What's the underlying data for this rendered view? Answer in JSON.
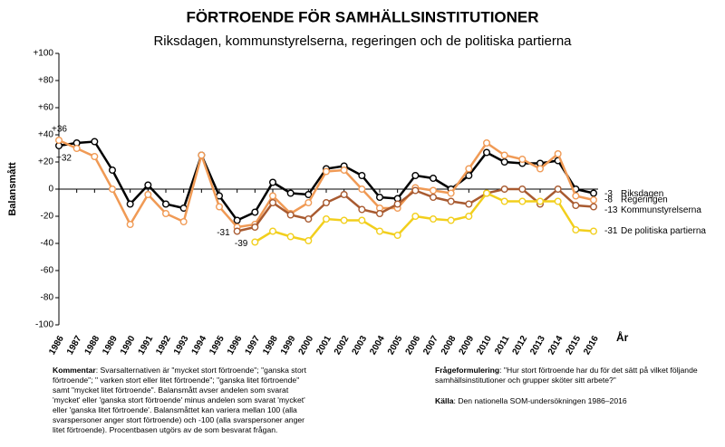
{
  "chart_data": {
    "type": "line",
    "title": "FÖRTROENDE FÖR SAMHÄLLSINSTITUTIONER",
    "subtitle": "Riksdagen, kommunstyrelserna, regeringen och de politiska partierna",
    "ylabel": "Balansmått",
    "xlabel": "År",
    "categories": [
      "1986",
      "1987",
      "1988",
      "1989",
      "1990",
      "1991",
      "1992",
      "1993",
      "1994",
      "1995",
      "1996",
      "1997",
      "1998",
      "1999",
      "2000",
      "2001",
      "2002",
      "2003",
      "2004",
      "2005",
      "2006",
      "2007",
      "2008",
      "2009",
      "2010",
      "2011",
      "2012",
      "2013",
      "2014",
      "2015",
      "2016"
    ],
    "ylim": [
      -100,
      100
    ],
    "yticks": [
      -100,
      -80,
      -60,
      -40,
      -20,
      0,
      {
        "value": 20,
        "label": "+20"
      },
      {
        "value": 40,
        "label": "+40"
      },
      {
        "value": 60,
        "label": "+60"
      },
      {
        "value": 80,
        "label": "+80"
      },
      {
        "value": 100,
        "label": "+100"
      }
    ],
    "series": [
      {
        "name": "Riksdagen",
        "color": "#000000",
        "values": [
          32,
          34,
          35,
          14,
          -11,
          3,
          -11,
          -14,
          25,
          -5,
          -23,
          -17,
          5,
          -3,
          -4,
          15,
          17,
          10,
          -6,
          -7,
          10,
          8,
          0,
          10,
          27,
          20,
          19,
          19,
          21,
          0,
          -3
        ],
        "value_labels": [
          null,
          null,
          null,
          null,
          null,
          null,
          null,
          null,
          null,
          null,
          null,
          null,
          null,
          null,
          null,
          null,
          null,
          null,
          null,
          null,
          null,
          null,
          null,
          null,
          null,
          null,
          null,
          null,
          null,
          null,
          "-3"
        ]
      },
      {
        "name": "Regeringen",
        "color": "#f09a55",
        "values": [
          36,
          30,
          24,
          0,
          -26,
          -4,
          -18,
          -24,
          25,
          -13,
          -28,
          -26,
          -5,
          -18,
          -10,
          13,
          14,
          0,
          -14,
          -14,
          1,
          -1,
          -3,
          15,
          34,
          25,
          22,
          15,
          26,
          -5,
          -8
        ],
        "value_labels": [
          "+36",
          null,
          null,
          null,
          null,
          null,
          null,
          null,
          null,
          null,
          null,
          null,
          null,
          null,
          null,
          null,
          null,
          null,
          null,
          null,
          null,
          null,
          null,
          null,
          null,
          null,
          null,
          null,
          null,
          null,
          "-8"
        ]
      },
      {
        "name": "Kommunstyrelserna",
        "color": "#a85a30",
        "values": [
          null,
          null,
          null,
          null,
          null,
          null,
          null,
          null,
          null,
          null,
          -31,
          -28,
          -10,
          -19,
          -22,
          -10,
          -4,
          -15,
          -18,
          -11,
          -1,
          -6,
          -9,
          -11,
          -3,
          0,
          0,
          -11,
          0,
          -12,
          -13
        ],
        "value_labels": [
          null,
          null,
          null,
          null,
          null,
          null,
          null,
          null,
          null,
          null,
          "-31",
          null,
          null,
          null,
          null,
          null,
          null,
          null,
          null,
          null,
          null,
          null,
          null,
          null,
          null,
          null,
          null,
          null,
          null,
          null,
          "-13"
        ]
      },
      {
        "name": "De politiska partierna",
        "color": "#f2cf1d",
        "values": [
          null,
          null,
          null,
          null,
          null,
          null,
          null,
          null,
          null,
          null,
          null,
          -39,
          -31,
          -35,
          -38,
          -22,
          -23,
          -23,
          -31,
          -34,
          -20,
          -22,
          -23,
          -20,
          -3,
          -9,
          -9,
          -9,
          -9,
          -30,
          -31
        ],
        "value_labels": [
          null,
          null,
          null,
          null,
          null,
          null,
          null,
          null,
          null,
          null,
          null,
          "-39",
          null,
          null,
          null,
          null,
          null,
          null,
          null,
          null,
          null,
          null,
          null,
          null,
          null,
          null,
          null,
          null,
          null,
          null,
          "-31"
        ]
      }
    ],
    "first_label": "+32",
    "notes": {
      "comment_label": "Kommentar",
      "comment": ": Svarsalternativen är  \"mycket stort förtroende\"; \"ganska stort förtroende\"; \" varken stort eller litet förtroende\"; \"ganska litet förtroende\" samt \"mycket litet förtroende\". Balansmått  avser andelen som svarat 'mycket' eller 'ganska stort förtroende' minus andelen som svarat 'mycket' eller 'ganska litet förtroende'. Balansmåttet kan variera mellan 100 (alla svarspersoner anger stort förtroende) och -100 (alla svarspersoner anger litet förtroende). Procentbasen utgörs av de som besvarat frågan.",
      "question_label": "Frågeformulering",
      "question": ": \"Hur stort förtroende har du för det sätt på vilket följande samhällsinstitutioner och grupper sköter sitt arbete?\"",
      "source_label": "Källa",
      "source": ": Den nationella SOM-undersökningen 1986–2016"
    }
  }
}
